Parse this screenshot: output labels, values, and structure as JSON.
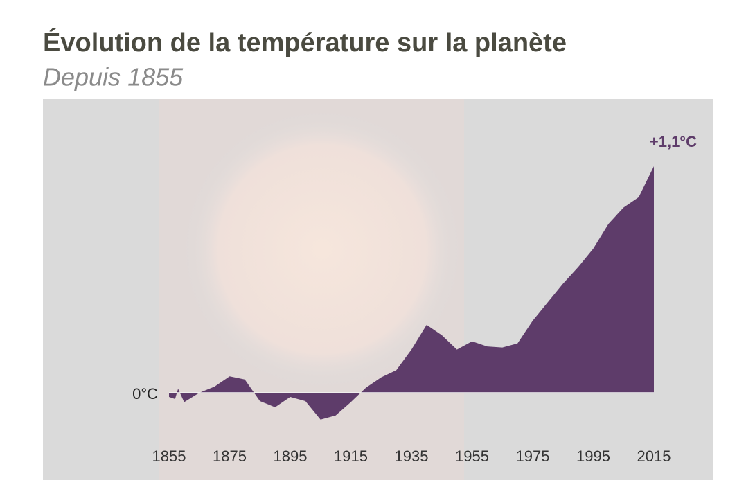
{
  "chart_data": {
    "type": "area",
    "title": "Évolution de la température sur la planète",
    "subtitle": "Depuis 1855",
    "x": [
      1855,
      1857,
      1858,
      1860,
      1865,
      1870,
      1875,
      1880,
      1885,
      1890,
      1895,
      1900,
      1905,
      1910,
      1915,
      1920,
      1925,
      1930,
      1935,
      1940,
      1945,
      1950,
      1955,
      1960,
      1965,
      1970,
      1975,
      1980,
      1985,
      1990,
      1995,
      2000,
      2005,
      2010,
      2015
    ],
    "series": [
      {
        "color": "#5e3c6a",
        "values": [
          -0.02,
          -0.03,
          0.02,
          -0.045,
          0.0,
          0.03,
          0.08,
          0.065,
          -0.04,
          -0.07,
          -0.02,
          -0.04,
          -0.13,
          -0.11,
          -0.045,
          0.025,
          0.075,
          0.11,
          0.21,
          0.33,
          0.28,
          0.21,
          0.25,
          0.225,
          0.22,
          0.24,
          0.35,
          0.44,
          0.53,
          0.61,
          0.7,
          0.82,
          0.9,
          0.95,
          1.1
        ]
      }
    ],
    "xlim": [
      1855,
      2015
    ],
    "xticks": [
      1855,
      1875,
      1895,
      1915,
      1935,
      1955,
      1975,
      1995,
      2015
    ],
    "ylim": [
      -0.4,
      1.3
    ],
    "yticks": [
      {
        "value": 0,
        "label": "0°C"
      }
    ],
    "annotations": [
      {
        "text": "+1,1°C",
        "value": 1.1
      }
    ]
  }
}
